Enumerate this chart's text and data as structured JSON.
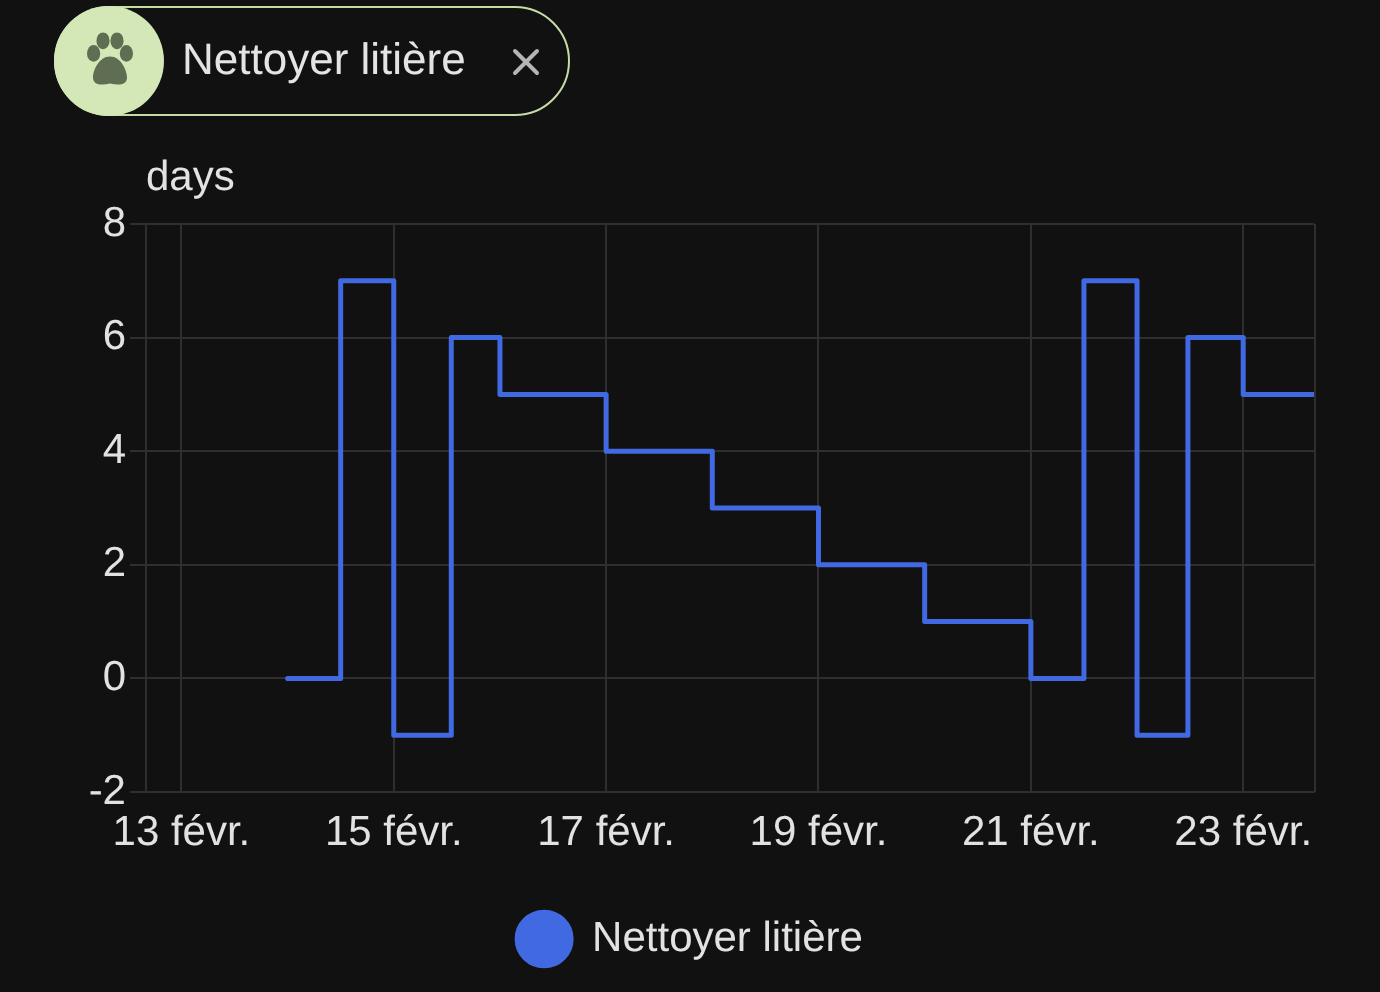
{
  "chart_data": {
    "type": "step",
    "title": "Nettoyer litière",
    "ylabel": "days",
    "x": [
      "--02-14T00:00",
      "--02-14T12:00",
      "--02-15T00:00",
      "--02-15T13:00",
      "--02-16T00:00",
      "--02-17T00:00",
      "--02-18T00:00",
      "--02-19T00:00",
      "--02-20T00:00",
      "--02-21T00:00",
      "--02-21T12:00",
      "--02-22T00:00",
      "--02-22T11:30",
      "--02-23T00:00",
      "--02-23T16:00"
    ],
    "series": [
      {
        "name": "Nettoyer litière",
        "color": "#4169e1",
        "values": [
          0,
          7,
          -1,
          6,
          5,
          4,
          3,
          2,
          1,
          0,
          7,
          -1,
          6,
          5,
          5
        ]
      }
    ],
    "xlim": [
      "--02-12T16:00",
      "--02-23T16:00"
    ],
    "xticks": [
      {
        "value": "--02-13",
        "label": "13 févr."
      },
      {
        "value": "--02-15",
        "label": "15 févr."
      },
      {
        "value": "--02-17",
        "label": "17 févr."
      },
      {
        "value": "--02-19",
        "label": "19 févr."
      },
      {
        "value": "--02-21",
        "label": "21 févr."
      },
      {
        "value": "--02-23",
        "label": "23 févr."
      }
    ],
    "ylim": [
      -2,
      8
    ],
    "yticks": [
      -2,
      0,
      2,
      4,
      6,
      8
    ],
    "grid": true,
    "legend": "bottom",
    "marker": "none",
    "line_style": "solid"
  }
}
